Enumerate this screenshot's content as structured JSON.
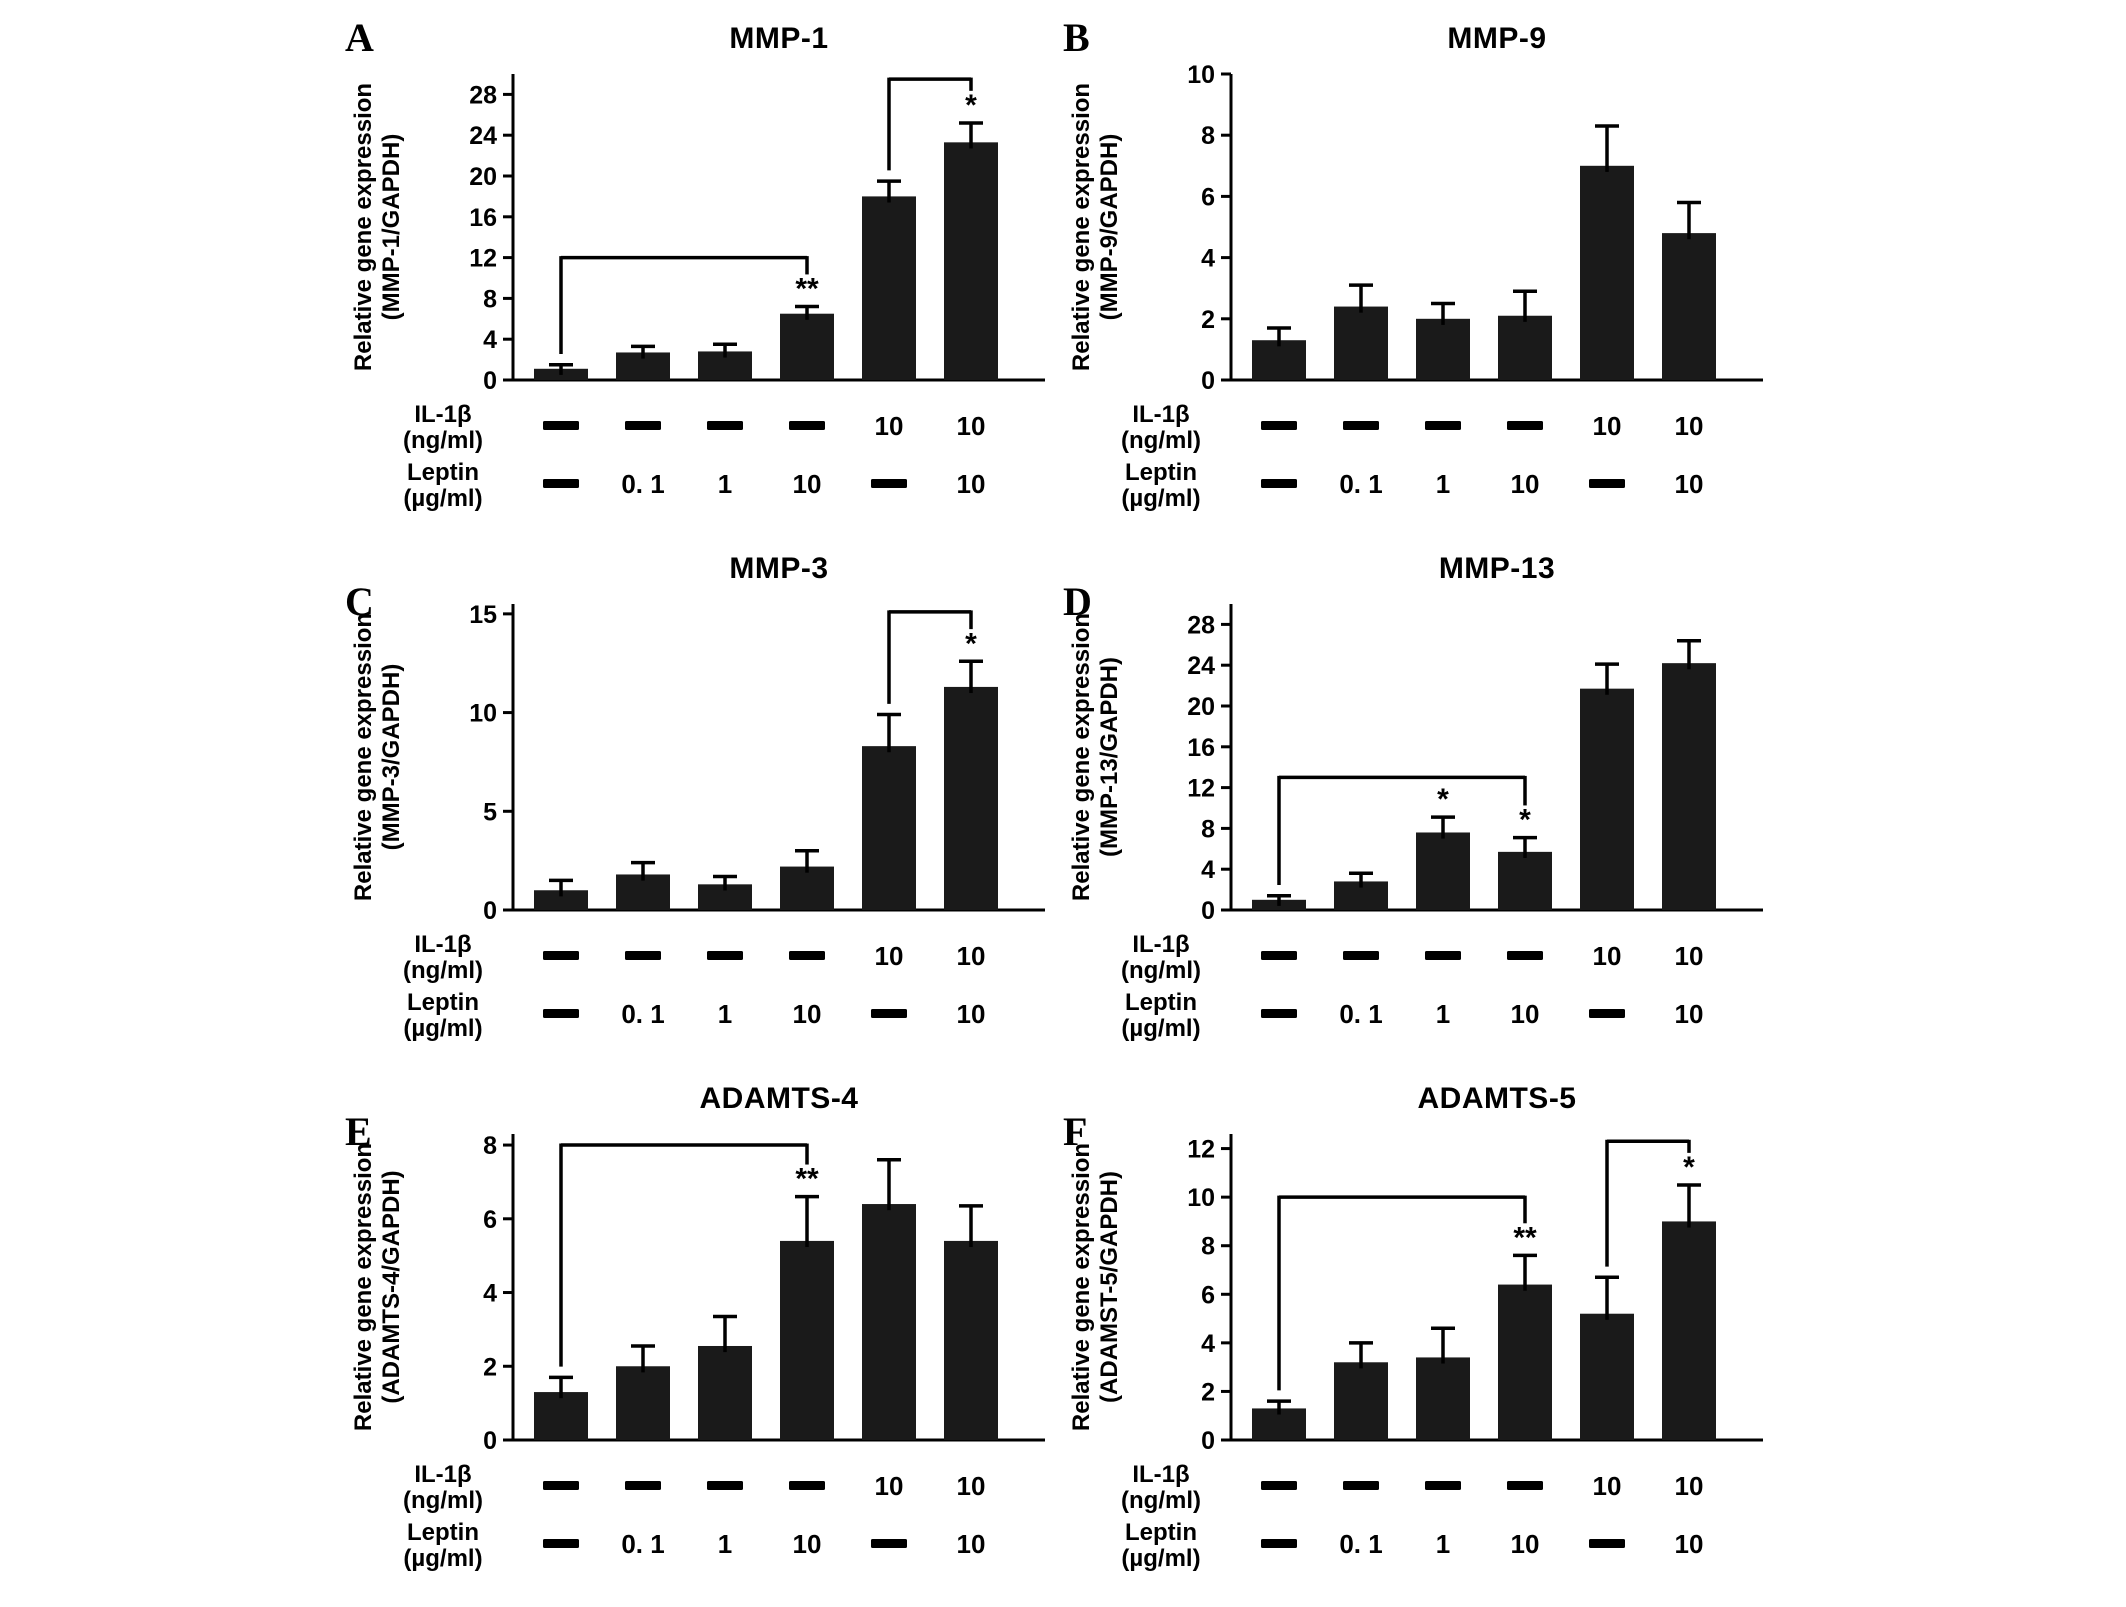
{
  "figure": {
    "background": "#ffffff",
    "bar_color": "#1a1a1a",
    "axis_color": "#000000",
    "treatment_rows": [
      {
        "name": "IL-1β",
        "unit": "(ng/ml)",
        "key": "il1b"
      },
      {
        "name": "Leptin",
        "unit": "(µg/ml)",
        "key": "leptin"
      }
    ]
  },
  "chart_data": [
    {
      "panel": "A",
      "type": "bar",
      "title": "MMP-1",
      "ylabel_line1": "Relative gene expression",
      "ylabel_line2": "(MMP-1/GAPDH)",
      "ylim": [
        0,
        30
      ],
      "yticks": [
        0,
        4,
        8,
        12,
        16,
        20,
        24,
        28
      ],
      "values": [
        1.1,
        2.7,
        2.8,
        6.5,
        18.0,
        23.3
      ],
      "errors": [
        0.4,
        0.6,
        0.7,
        0.7,
        1.5,
        1.9
      ],
      "sig": [
        "",
        "",
        "",
        "**",
        "",
        "*"
      ],
      "il1b": [
        "-",
        "-",
        "-",
        "-",
        "10",
        "10"
      ],
      "leptin": [
        "-",
        "0. 1",
        "1",
        "10",
        "-",
        "10"
      ],
      "brackets": [
        {
          "from": 0,
          "to": 3,
          "y": 12
        },
        {
          "from": 4,
          "to": 5,
          "y": 29.5
        }
      ]
    },
    {
      "panel": "B",
      "type": "bar",
      "title": "MMP-9",
      "ylabel_line1": "Relative gene expression",
      "ylabel_line2": "(MMP-9/GAPDH)",
      "ylim": [
        0,
        10
      ],
      "yticks": [
        0,
        2,
        4,
        6,
        8,
        10
      ],
      "values": [
        1.3,
        2.4,
        2.0,
        2.1,
        7.0,
        4.8
      ],
      "errors": [
        0.4,
        0.7,
        0.5,
        0.8,
        1.3,
        1.0
      ],
      "sig": [
        "",
        "",
        "",
        "",
        "",
        ""
      ],
      "il1b": [
        "-",
        "-",
        "-",
        "-",
        "10",
        "10"
      ],
      "leptin": [
        "-",
        "0. 1",
        "1",
        "10",
        "-",
        "10"
      ],
      "brackets": []
    },
    {
      "panel": "C",
      "type": "bar",
      "title": "MMP-3",
      "ylabel_line1": "Relative gene expression",
      "ylabel_line2": "(MMP-3/GAPDH)",
      "ylim": [
        0,
        15.5
      ],
      "yticks": [
        0,
        5,
        10,
        15
      ],
      "values": [
        1.0,
        1.8,
        1.3,
        2.2,
        8.3,
        11.3
      ],
      "errors": [
        0.5,
        0.6,
        0.4,
        0.8,
        1.6,
        1.3
      ],
      "sig": [
        "",
        "",
        "",
        "",
        "",
        "*"
      ],
      "il1b": [
        "-",
        "-",
        "-",
        "-",
        "10",
        "10"
      ],
      "leptin": [
        "-",
        "0. 1",
        "1",
        "10",
        "-",
        "10"
      ],
      "brackets": [
        {
          "from": 4,
          "to": 5,
          "y": 15.1
        }
      ]
    },
    {
      "panel": "D",
      "type": "bar",
      "title": "MMP-13",
      "ylabel_line1": "Relative gene expression",
      "ylabel_line2": "(MMP-13/GAPDH)",
      "ylim": [
        0,
        30
      ],
      "yticks": [
        0,
        4,
        8,
        12,
        16,
        20,
        24,
        28
      ],
      "values": [
        1.0,
        2.8,
        7.6,
        5.7,
        21.7,
        24.2
      ],
      "errors": [
        0.4,
        0.8,
        1.5,
        1.4,
        2.4,
        2.2
      ],
      "sig": [
        "",
        "",
        "*",
        "*",
        "",
        ""
      ],
      "il1b": [
        "-",
        "-",
        "-",
        "-",
        "10",
        "10"
      ],
      "leptin": [
        "-",
        "0. 1",
        "1",
        "10",
        "-",
        "10"
      ],
      "brackets": [
        {
          "from": 0,
          "to": 3,
          "y": 13
        }
      ]
    },
    {
      "panel": "E",
      "type": "bar",
      "title": "ADAMTS-4",
      "ylabel_line1": "Relative gene expression",
      "ylabel_line2": "(ADAMTS-4/GAPDH)",
      "ylim": [
        0,
        8.3
      ],
      "yticks": [
        0,
        2,
        4,
        6,
        8
      ],
      "values": [
        1.3,
        2.0,
        2.55,
        5.4,
        6.4,
        5.4
      ],
      "errors": [
        0.4,
        0.55,
        0.8,
        1.2,
        1.2,
        0.95
      ],
      "sig": [
        "",
        "",
        "",
        "**",
        "",
        ""
      ],
      "il1b": [
        "-",
        "-",
        "-",
        "-",
        "10",
        "10"
      ],
      "leptin": [
        "-",
        "0. 1",
        "1",
        "10",
        "-",
        "10"
      ],
      "brackets": [
        {
          "from": 0,
          "to": 3,
          "y": 8.0
        }
      ]
    },
    {
      "panel": "F",
      "type": "bar",
      "title": "ADAMTS-5",
      "ylabel_line1": "Relative gene expression",
      "ylabel_line2": "(ADAMST-5/GAPDH)",
      "ylim": [
        0,
        12.6
      ],
      "yticks": [
        0,
        2,
        4,
        6,
        8,
        10,
        12
      ],
      "values": [
        1.3,
        3.2,
        3.4,
        6.4,
        5.2,
        9.0
      ],
      "errors": [
        0.3,
        0.8,
        1.2,
        1.2,
        1.5,
        1.5
      ],
      "sig": [
        "",
        "",
        "",
        "**",
        "",
        "*"
      ],
      "il1b": [
        "-",
        "-",
        "-",
        "-",
        "10",
        "10"
      ],
      "leptin": [
        "-",
        "0. 1",
        "1",
        "10",
        "-",
        "10"
      ],
      "brackets": [
        {
          "from": 0,
          "to": 3,
          "y": 10
        },
        {
          "from": 4,
          "to": 5,
          "y": 12.3
        }
      ]
    }
  ]
}
